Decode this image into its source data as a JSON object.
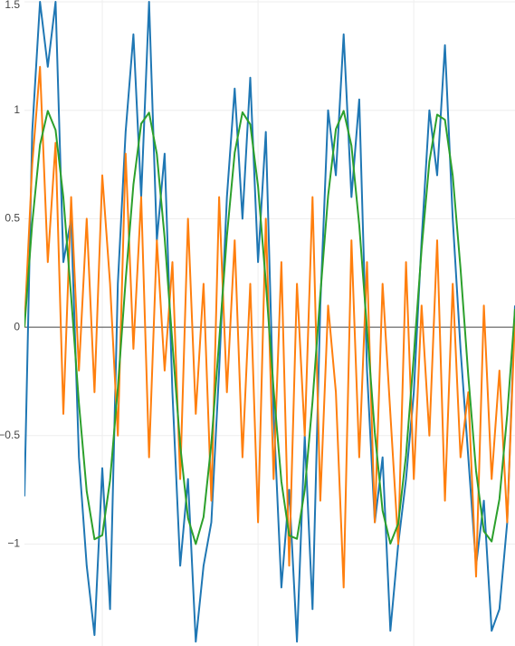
{
  "chart_data": {
    "type": "line",
    "x": [
      0,
      0.5,
      1,
      1.5,
      2,
      2.5,
      3,
      3.5,
      4,
      4.5,
      5,
      5.5,
      6,
      6.5,
      7,
      7.5,
      8,
      8.5,
      9,
      9.5,
      10,
      10.5,
      11,
      11.5,
      12,
      12.5,
      13,
      13.5,
      14,
      14.5,
      15,
      15.5,
      16,
      16.5,
      17,
      17.5,
      18,
      18.5,
      19,
      19.5,
      20,
      20.5,
      21,
      21.5,
      22,
      22.5,
      23,
      23.5,
      24,
      24.5,
      25,
      25.5,
      26,
      26.5,
      27,
      27.5,
      28,
      28.5,
      29,
      29.5,
      30,
      30.5,
      31,
      31.5
    ],
    "series": [
      {
        "color": "#1f77b4",
        "values": [
          -0.78,
          0.9,
          1.5,
          1.2,
          1.5,
          0.3,
          0.5,
          -0.6,
          -1.1,
          -1.42,
          -0.65,
          -1.3,
          0.2,
          0.9,
          1.35,
          0.6,
          1.5,
          0.4,
          0.8,
          -0.3,
          -1.1,
          -0.7,
          -1.45,
          -1.1,
          -0.9,
          -0.2,
          0.6,
          1.1,
          0.5,
          1.15,
          0.3,
          0.9,
          -0.4,
          -1.2,
          -0.75,
          -1.45,
          -0.5,
          -1.3,
          0.1,
          1.0,
          0.7,
          1.35,
          0.6,
          1.05,
          -0.2,
          -0.9,
          -0.6,
          -1.4,
          -1.0,
          -0.7,
          -0.3,
          0.4,
          1.0,
          0.7,
          1.3,
          0.5,
          -0.1,
          -0.6,
          -1.1,
          -0.8,
          -1.4,
          -1.3,
          -0.9,
          0.1
        ]
      },
      {
        "color": "#ff7f0e",
        "values": [
          0.0,
          0.75,
          1.2,
          0.3,
          0.85,
          -0.4,
          0.6,
          -0.2,
          0.5,
          -0.3,
          0.7,
          0.2,
          -0.5,
          0.8,
          -0.1,
          0.6,
          -0.6,
          0.4,
          -0.2,
          0.3,
          -0.7,
          0.5,
          -0.4,
          0.2,
          -0.8,
          0.6,
          -0.3,
          0.4,
          -0.6,
          0.2,
          -0.9,
          0.5,
          -0.7,
          0.3,
          -1.1,
          0.2,
          -0.5,
          0.6,
          -0.8,
          0.1,
          -0.3,
          -1.2,
          0.4,
          -0.6,
          0.3,
          -0.9,
          0.2,
          -0.4,
          -1.0,
          0.3,
          -0.7,
          0.1,
          -0.5,
          0.4,
          -0.8,
          0.2,
          -0.6,
          -0.3,
          -1.15,
          0.1,
          -0.7,
          -0.2,
          -0.9,
          0.05
        ]
      },
      {
        "color": "#2ca02c",
        "values": [
          0,
          0.479,
          0.841,
          0.997,
          0.909,
          0.598,
          0.141,
          -0.351,
          -0.757,
          -0.978,
          -0.959,
          -0.706,
          -0.279,
          0.215,
          0.657,
          0.938,
          0.989,
          0.798,
          0.412,
          -0.075,
          -0.544,
          -0.88,
          -1.0,
          -0.875,
          -0.537,
          -0.066,
          0.42,
          0.804,
          0.991,
          0.935,
          0.65,
          0.206,
          -0.288,
          -0.712,
          -0.961,
          -0.976,
          -0.751,
          -0.342,
          0.15,
          0.605,
          0.913,
          0.997,
          0.837,
          0.471,
          -0.009,
          -0.487,
          -0.846,
          -0.998,
          -0.906,
          -0.591,
          -0.132,
          0.359,
          0.763,
          0.98,
          0.956,
          0.699,
          0.271,
          -0.224,
          -0.664,
          -0.941,
          -0.988,
          -0.793,
          -0.404,
          0.084
        ]
      }
    ],
    "xlim": [
      0,
      31.5
    ],
    "xticks": [
      5,
      15,
      25
    ],
    "ylim": [
      -1.47,
      1.5
    ],
    "yticks": [
      1.5,
      1,
      0.5,
      0,
      {
        "value": -0.5,
        "label": "−0.5"
      },
      {
        "value": -1,
        "label": "−1"
      }
    ],
    "grid": true
  }
}
